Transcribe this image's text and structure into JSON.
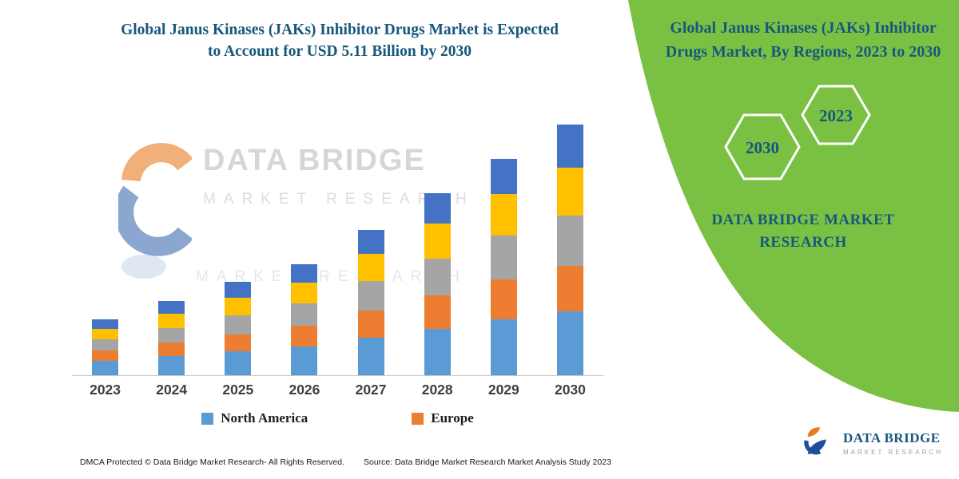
{
  "theme": {
    "teal": "#16587c",
    "green": "#7ac143"
  },
  "header": {
    "title_line1": "Global Janus Kinases (JAKs) Inhibitor Drugs Market is Expected",
    "title_line2": "to Account for USD 5.11 Billion by 2030"
  },
  "chart_data": {
    "type": "bar",
    "stacked": true,
    "title": "Global Janus Kinases (JAKs) Inhibitor Drugs Market is Expected to Account for USD 5.11 Billion by 2030",
    "unit": "USD Billion",
    "categories": [
      "2023",
      "2024",
      "2025",
      "2026",
      "2027",
      "2028",
      "2029",
      "2030"
    ],
    "ylim": [
      0,
      5.2
    ],
    "grid": false,
    "legend_position": "bottom",
    "annotation": "2030 total = USD 5.11 Billion",
    "series": [
      {
        "name": "North America",
        "color": "#5b9bd5",
        "values": [
          0.29,
          0.39,
          0.48,
          0.58,
          0.76,
          0.95,
          1.13,
          1.3
        ]
      },
      {
        "name": "Europe",
        "color": "#ed7d31",
        "values": [
          0.21,
          0.27,
          0.34,
          0.42,
          0.55,
          0.68,
          0.81,
          0.93
        ]
      },
      {
        "name": "Unlabeled (gray)",
        "color": "#a5a5a5",
        "values": [
          0.23,
          0.29,
          0.39,
          0.45,
          0.6,
          0.74,
          0.89,
          1.03
        ]
      },
      {
        "name": "Unlabeled (yellow)",
        "color": "#ffc000",
        "values": [
          0.21,
          0.29,
          0.35,
          0.43,
          0.56,
          0.71,
          0.85,
          0.98
        ]
      },
      {
        "name": "Unlabeled (dark blue)",
        "color": "#4472c4",
        "values": [
          0.19,
          0.26,
          0.32,
          0.37,
          0.48,
          0.61,
          0.72,
          0.87
        ]
      }
    ]
  },
  "legend": [
    {
      "label": "North America",
      "color": "#5b9bd5"
    },
    {
      "label": "Europe",
      "color": "#ed7d31"
    }
  ],
  "watermark": {
    "line1": "DATA BRIDGE",
    "line2": "MARKET RESEARCH"
  },
  "right_panel": {
    "title": "Global Janus Kinases (JAKs) Inhibitor Drugs Market, By Regions, 2023 to 2030",
    "hexagon_left_year": "2030",
    "hexagon_right_year": "2023",
    "brand_text": "DATA BRIDGE MARKET RESEARCH"
  },
  "footer": {
    "dmca": "DMCA Protected © Data Bridge Market Research-  All Rights Reserved.",
    "source": "Source: Data Bridge Market Research  Market Analysis Study 2023"
  },
  "logo": {
    "name": "DATA BRIDGE",
    "tagline": "MARKET RESEARCH"
  }
}
